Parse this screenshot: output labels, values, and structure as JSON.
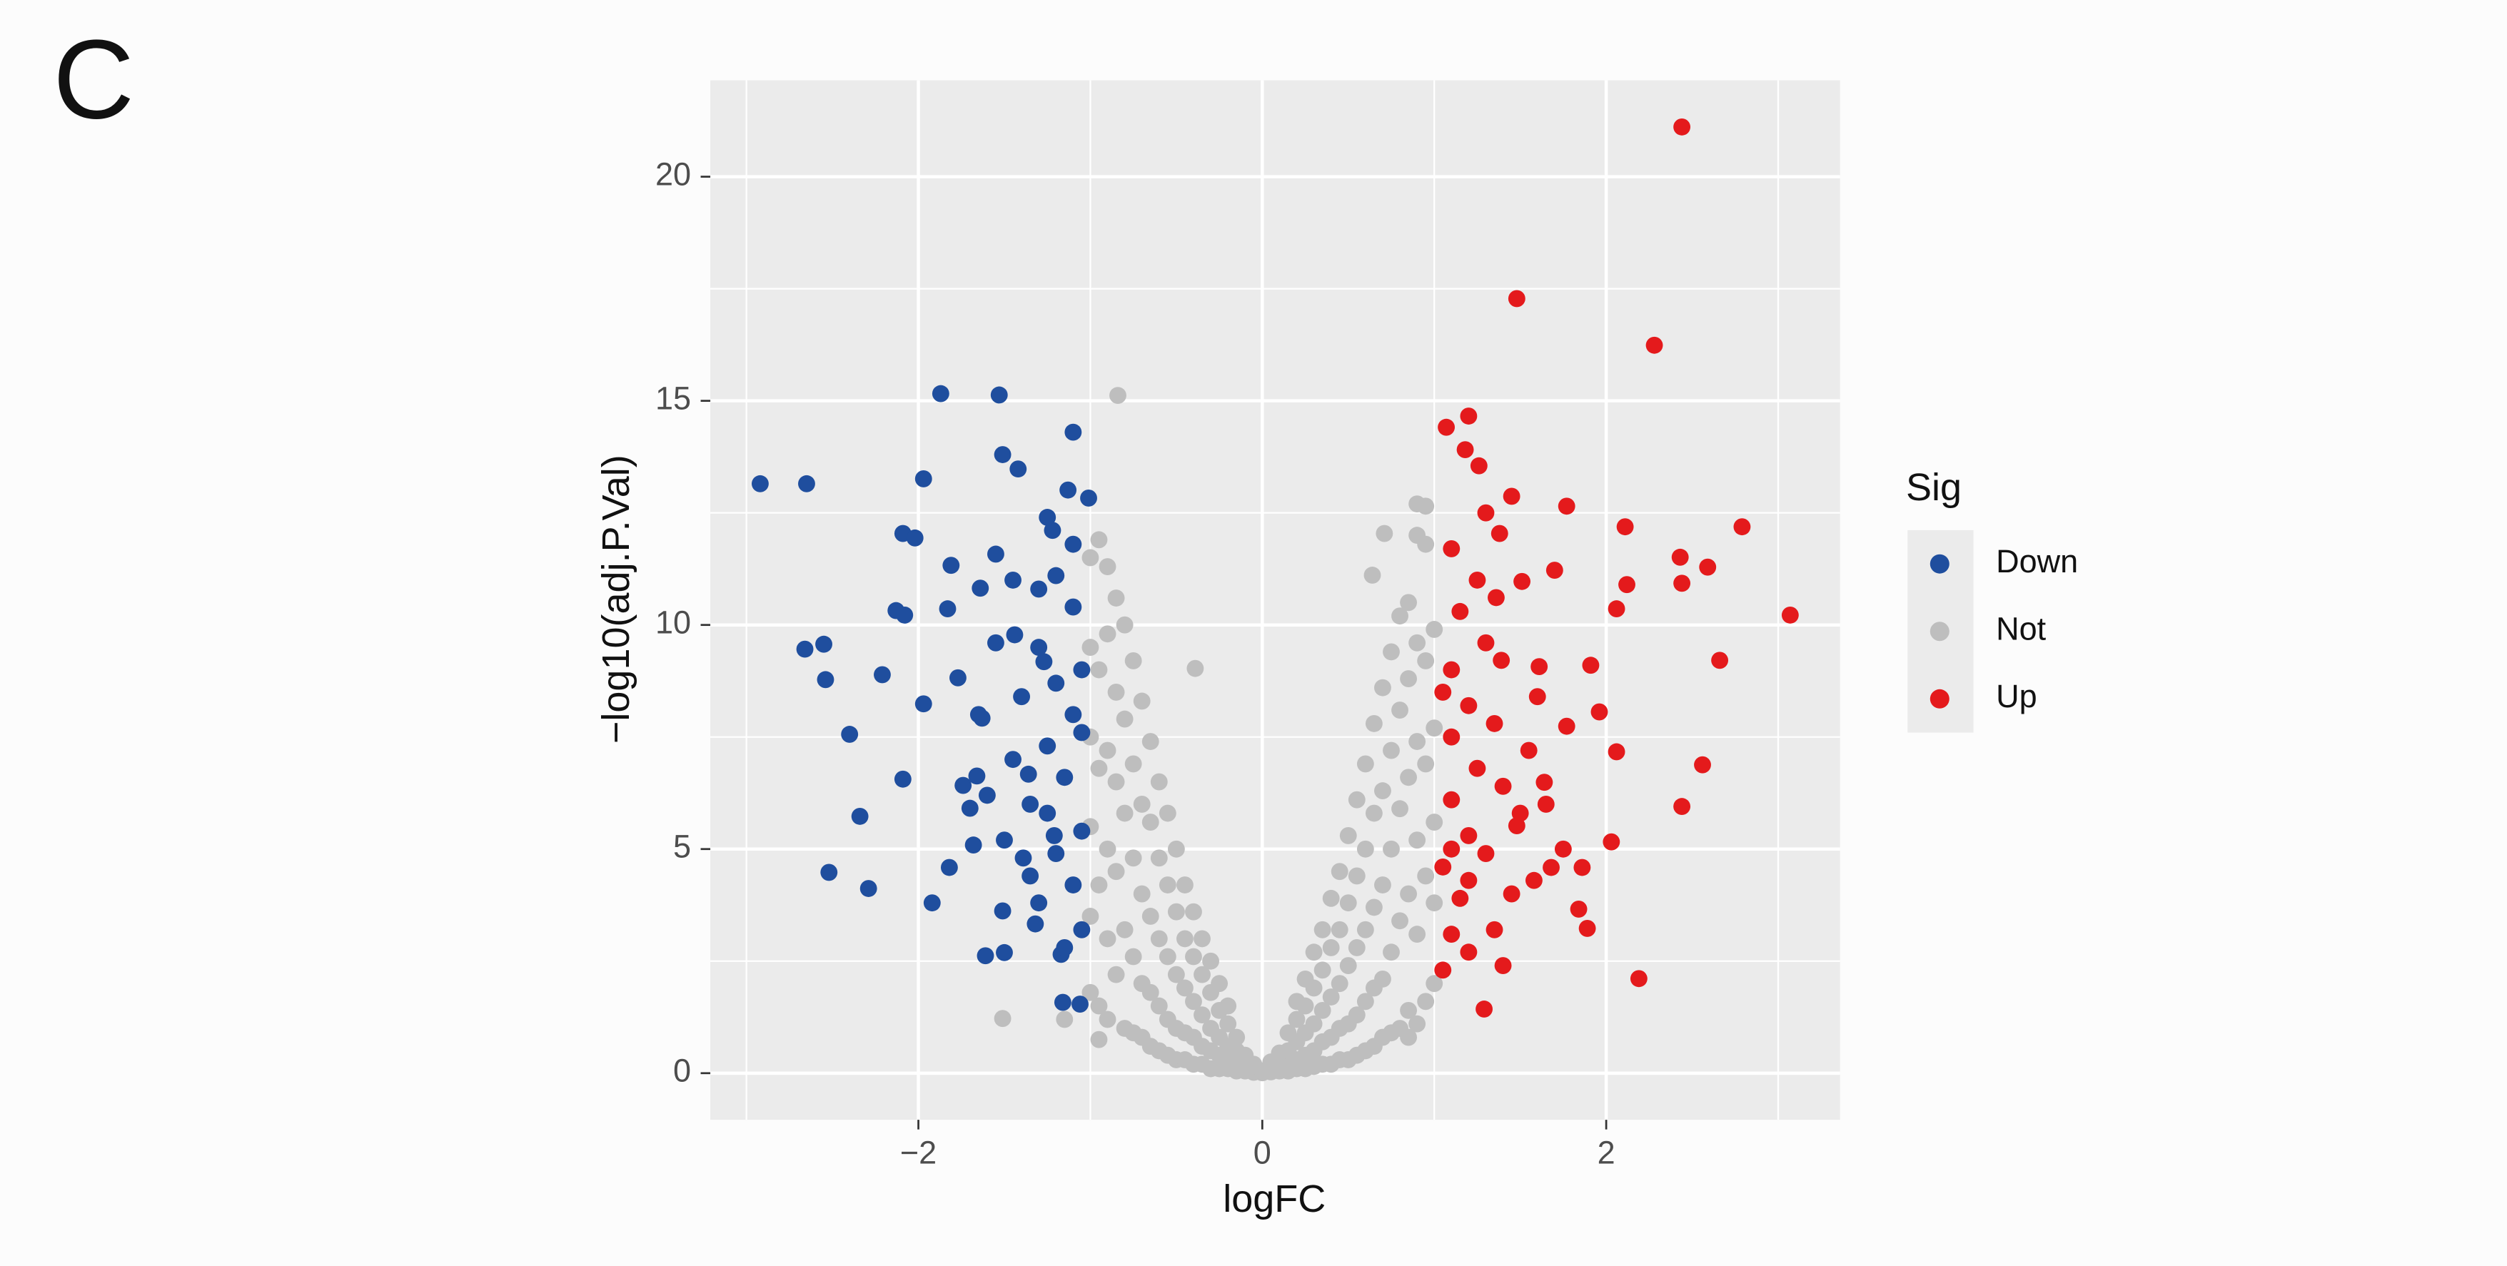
{
  "panel_label": "C",
  "chart_data": {
    "type": "scatter",
    "xlabel": "logFC",
    "ylabel": "−log10(adj.P.Val)",
    "legend_title": "Sig",
    "legend": "right",
    "grid": true,
    "xlim": [
      -3.21,
      3.36
    ],
    "ylim": [
      -1.04,
      22.15
    ],
    "xticks": [
      {
        "value": -2,
        "label": "−2"
      },
      0,
      2
    ],
    "yticks": [
      0,
      5,
      10,
      15,
      20
    ],
    "x_minor_grid": [
      -3,
      -1,
      1,
      3
    ],
    "y_minor_grid": [
      2.5,
      7.5,
      12.5,
      17.5
    ],
    "series": [
      {
        "name": "Down",
        "color": "#1f4e9e",
        "x": [
          -2.92,
          -2.65,
          -2.66,
          -2.55,
          -2.54,
          -2.4,
          -2.34,
          -2.52,
          -2.29,
          -2.21,
          -2.09,
          -2.13,
          -2.08,
          -2.09,
          -2.02,
          -1.97,
          -1.97,
          -1.92,
          -1.87,
          -1.81,
          -1.83,
          -1.82,
          -1.77,
          -1.74,
          -1.7,
          -1.68,
          -1.66,
          -1.64,
          -1.63,
          -1.61,
          -1.55,
          -1.53,
          -1.51,
          -1.51,
          -1.5,
          -1.44,
          -1.42,
          -1.39,
          -1.36,
          -1.32,
          -1.27,
          -1.22,
          -1.21,
          -1.17,
          -1.16,
          -1.13,
          -1.1,
          -1.06,
          -1.01,
          -1.3,
          -1.2,
          -1.1,
          -1.25,
          -1.15,
          -1.35,
          -1.05,
          -1.2,
          -1.1,
          -1.3,
          -1.05,
          -1.15,
          -1.4,
          -1.45,
          -1.1,
          -1.2,
          -1.3,
          -1.05,
          -1.5,
          -1.25,
          -1.05,
          -1.35,
          -1.6,
          -1.1,
          -1.25,
          -1.55,
          -1.65,
          -1.45
        ],
        "values": [
          13.15,
          13.15,
          9.46,
          9.57,
          8.78,
          7.56,
          5.73,
          4.48,
          4.12,
          8.89,
          6.56,
          10.32,
          10.22,
          12.04,
          11.94,
          13.26,
          8.24,
          3.8,
          15.16,
          11.33,
          10.36,
          4.59,
          8.82,
          6.42,
          5.91,
          5.09,
          6.63,
          10.82,
          7.92,
          2.62,
          11.58,
          15.13,
          13.8,
          3.62,
          2.69,
          9.78,
          13.48,
          4.8,
          6.67,
          3.33,
          9.18,
          12.11,
          5.3,
          2.65,
          1.58,
          13.01,
          14.3,
          1.54,
          12.83,
          9.5,
          8.7,
          8.0,
          7.3,
          6.6,
          6.0,
          5.4,
          4.9,
          4.2,
          3.8,
          3.2,
          2.8,
          8.4,
          7.0,
          10.4,
          11.1,
          10.8,
          9.0,
          5.2,
          5.8,
          7.6,
          4.4,
          6.2,
          11.8,
          12.4,
          9.6,
          8.0,
          11.0
        ]
      },
      {
        "name": "Not",
        "color": "#bebebe",
        "x": [
          -1.0,
          -1.0,
          -1.0,
          -1.0,
          -1.0,
          -1.0,
          -0.95,
          -0.95,
          -0.95,
          -0.95,
          -0.95,
          -0.9,
          -0.9,
          -0.9,
          -0.9,
          -0.9,
          -0.9,
          -0.85,
          -0.85,
          -0.85,
          -0.85,
          -0.85,
          -0.8,
          -0.8,
          -0.8,
          -0.8,
          -0.8,
          -0.75,
          -0.75,
          -0.75,
          -0.75,
          -0.75,
          -0.7,
          -0.7,
          -0.7,
          -0.7,
          -0.7,
          -0.65,
          -0.65,
          -0.65,
          -0.65,
          -0.65,
          -0.6,
          -0.6,
          -0.6,
          -0.6,
          -0.6,
          -0.55,
          -0.55,
          -0.55,
          -0.55,
          -0.55,
          -0.5,
          -0.5,
          -0.5,
          -0.5,
          -0.5,
          -0.45,
          -0.45,
          -0.45,
          -0.45,
          -0.45,
          -0.4,
          -0.4,
          -0.4,
          -0.4,
          -0.4,
          -0.35,
          -0.35,
          -0.35,
          -0.35,
          -0.35,
          -0.3,
          -0.3,
          -0.3,
          -0.3,
          -0.3,
          -0.25,
          -0.25,
          -0.25,
          -0.25,
          -0.25,
          -0.2,
          -0.2,
          -0.2,
          -0.2,
          -0.2,
          -0.15,
          -0.15,
          -0.15,
          -0.15,
          -0.1,
          -0.1,
          -0.1,
          -0.05,
          -0.05,
          -0.05,
          0,
          0,
          0.05,
          0.05,
          0.05,
          0.1,
          0.1,
          0.1,
          0.15,
          0.15,
          0.15,
          0.15,
          0.2,
          0.2,
          0.2,
          0.2,
          0.2,
          0.25,
          0.25,
          0.25,
          0.25,
          0.25,
          0.3,
          0.3,
          0.3,
          0.3,
          0.3,
          0.35,
          0.35,
          0.35,
          0.35,
          0.35,
          0.4,
          0.4,
          0.4,
          0.4,
          0.4,
          0.45,
          0.45,
          0.45,
          0.45,
          0.45,
          0.5,
          0.5,
          0.5,
          0.5,
          0.5,
          0.55,
          0.55,
          0.55,
          0.55,
          0.55,
          0.6,
          0.6,
          0.6,
          0.6,
          0.6,
          0.65,
          0.65,
          0.65,
          0.65,
          0.65,
          0.7,
          0.7,
          0.7,
          0.7,
          0.7,
          0.75,
          0.75,
          0.75,
          0.75,
          0.75,
          0.8,
          0.8,
          0.8,
          0.8,
          0.8,
          0.85,
          0.85,
          0.85,
          0.85,
          0.85,
          0.9,
          0.9,
          0.9,
          0.9,
          0.9,
          0.9,
          0.95,
          0.95,
          0.95,
          0.95,
          0.95,
          1.0,
          1.0,
          1.0,
          1.0,
          1.0,
          -0.84,
          -1.51,
          -1.15,
          -0.95,
          0.85,
          -0.39,
          0.71,
          0.95,
          0.64,
          0.9
        ],
        "values": [
          1.8,
          3.5,
          5.5,
          7.5,
          9.5,
          11.5,
          1.5,
          4.2,
          6.8,
          9.0,
          11.9,
          1.2,
          3.0,
          5.0,
          7.2,
          9.8,
          11.3,
          2.2,
          4.5,
          6.5,
          8.5,
          10.6,
          1.0,
          3.2,
          5.8,
          7.9,
          10.0,
          0.9,
          2.6,
          4.8,
          6.9,
          9.2,
          0.8,
          2.0,
          4.0,
          6.0,
          8.3,
          0.6,
          1.8,
          3.5,
          5.6,
          7.4,
          0.5,
          1.5,
          3.0,
          4.8,
          6.5,
          0.4,
          1.2,
          2.6,
          4.2,
          5.8,
          0.3,
          1.0,
          2.2,
          3.6,
          5.0,
          0.3,
          0.9,
          1.9,
          3.0,
          4.2,
          0.2,
          0.8,
          1.6,
          2.6,
          3.6,
          0.2,
          0.6,
          1.3,
          2.2,
          3.0,
          0.1,
          0.5,
          1.0,
          1.8,
          2.5,
          0.1,
          0.4,
          0.8,
          1.4,
          2.0,
          0.1,
          0.3,
          0.6,
          1.1,
          1.5,
          0.05,
          0.2,
          0.5,
          0.8,
          0.05,
          0.2,
          0.4,
          0.02,
          0.1,
          0.2,
          0.01,
          0.05,
          0.03,
          0.1,
          0.25,
          0.05,
          0.2,
          0.45,
          0.05,
          0.25,
          0.5,
          0.9,
          0.1,
          0.3,
          0.7,
          1.2,
          1.6,
          0.1,
          0.4,
          0.9,
          1.5,
          2.1,
          0.15,
          0.5,
          1.1,
          1.9,
          2.7,
          0.2,
          0.7,
          1.4,
          2.3,
          3.2,
          0.2,
          0.8,
          1.7,
          2.8,
          3.9,
          0.3,
          1.0,
          2.0,
          3.2,
          4.5,
          0.3,
          1.1,
          2.4,
          3.8,
          5.3,
          0.4,
          1.3,
          2.8,
          4.4,
          6.1,
          0.5,
          1.6,
          3.2,
          5.0,
          6.9,
          0.6,
          1.9,
          3.7,
          5.8,
          7.8,
          0.8,
          2.1,
          4.2,
          6.3,
          8.6,
          0.9,
          2.7,
          5.0,
          7.2,
          9.4,
          1.0,
          3.4,
          5.9,
          8.1,
          10.2,
          1.4,
          4.0,
          6.6,
          8.8,
          10.5,
          1.1,
          3.1,
          5.2,
          7.4,
          9.6,
          12.0,
          1.6,
          4.4,
          6.9,
          9.2,
          11.8,
          2.0,
          3.8,
          5.6,
          7.7,
          9.9,
          15.12,
          1.22,
          1.2,
          0.75,
          0.8,
          9.03,
          12.04,
          12.65,
          11.11,
          12.7
        ]
      },
      {
        "name": "Up",
        "color": "#e41a1c",
        "x": [
          2.44,
          1.48,
          2.28,
          1.2,
          1.07,
          1.18,
          1.26,
          1.45,
          1.77,
          2.11,
          2.79,
          2.43,
          2.59,
          2.44,
          2.12,
          3.07,
          2.06,
          2.66,
          1.91,
          2.06,
          2.56,
          2.44,
          2.03,
          1.89,
          2.19,
          1.29,
          1.84,
          1.86,
          1.77,
          1.96,
          1.61,
          1.7,
          1.38,
          1.36,
          1.51,
          1.39,
          1.64,
          1.58,
          1.68,
          1.48,
          1.05,
          1.1,
          1.15,
          1.05,
          1.2,
          1.1,
          1.25,
          1.1,
          1.2,
          1.1,
          1.3,
          1.15,
          1.25,
          1.1,
          1.35,
          1.4,
          1.3,
          1.45,
          1.2,
          1.35,
          1.5,
          1.55,
          1.6,
          1.3,
          1.05,
          1.4,
          1.65,
          1.75,
          1.2,
          1.1
        ],
        "values": [
          21.11,
          17.28,
          16.24,
          14.66,
          14.41,
          13.91,
          13.55,
          12.87,
          12.65,
          12.19,
          12.19,
          11.51,
          11.29,
          10.93,
          10.9,
          10.22,
          10.36,
          9.21,
          9.1,
          7.17,
          6.88,
          5.95,
          5.16,
          3.23,
          2.11,
          1.43,
          3.66,
          4.59,
          7.74,
          8.06,
          9.07,
          11.22,
          12.04,
          10.61,
          10.97,
          9.21,
          6.49,
          4.3,
          4.59,
          5.52,
          2.3,
          3.1,
          3.9,
          4.6,
          5.3,
          6.1,
          6.8,
          7.5,
          8.2,
          9.0,
          9.6,
          10.3,
          11.0,
          11.7,
          7.8,
          6.4,
          4.9,
          4.0,
          2.7,
          3.2,
          5.8,
          7.2,
          8.4,
          12.5,
          8.5,
          2.4,
          6.0,
          5.0,
          4.3,
          5.0
        ]
      }
    ]
  }
}
